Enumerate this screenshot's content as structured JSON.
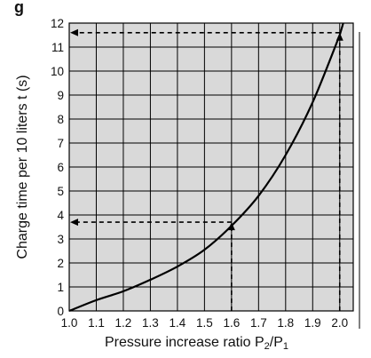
{
  "header_fragment": "g",
  "chart_data": {
    "type": "line",
    "title": "",
    "xlabel": "Pressure increase ratio  P2/P1",
    "xlabel_parts": [
      "Pressure increase ratio  P",
      "2",
      "/P",
      "1"
    ],
    "ylabel": "Charge time per 10 liters  t (s)",
    "xlim": [
      1.0,
      2.05
    ],
    "ylim": [
      0,
      12
    ],
    "x_ticks": [
      "1.0",
      "1.1",
      "1.2",
      "1.3",
      "1.4",
      "1.5",
      "1.6",
      "1.7",
      "1.8",
      "1.9",
      "2.0"
    ],
    "y_ticks": [
      "0",
      "1",
      "2",
      "3",
      "4",
      "5",
      "6",
      "7",
      "8",
      "9",
      "10",
      "11",
      "12"
    ],
    "grid": true,
    "background": "#d9d9d9",
    "series": [
      {
        "x": [
          1.0,
          1.1,
          1.2,
          1.3,
          1.4,
          1.5,
          1.6,
          1.7,
          1.8,
          1.9,
          2.0
        ],
        "y": [
          0.0,
          0.45,
          0.82,
          1.3,
          1.85,
          2.55,
          3.55,
          4.8,
          6.5,
          8.7,
          11.5
        ]
      }
    ],
    "reference_lines": [
      {
        "x": 1.6,
        "y": 3.7
      },
      {
        "x": 2.0,
        "y": 11.6
      }
    ]
  }
}
